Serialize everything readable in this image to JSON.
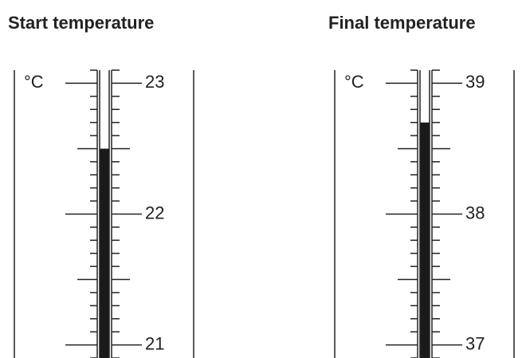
{
  "thermometers": [
    {
      "title": "Start temperature",
      "unit": "°C",
      "range": [
        20.9,
        23.1
      ],
      "ticks": [
        21,
        22,
        23
      ],
      "minor_step": 0.1,
      "reading": 22.5
    },
    {
      "title": "Final temperature",
      "unit": "°C",
      "range": [
        36.9,
        39.1
      ],
      "ticks": [
        37,
        38,
        39
      ],
      "minor_step": 0.1,
      "reading": 38.7
    }
  ]
}
